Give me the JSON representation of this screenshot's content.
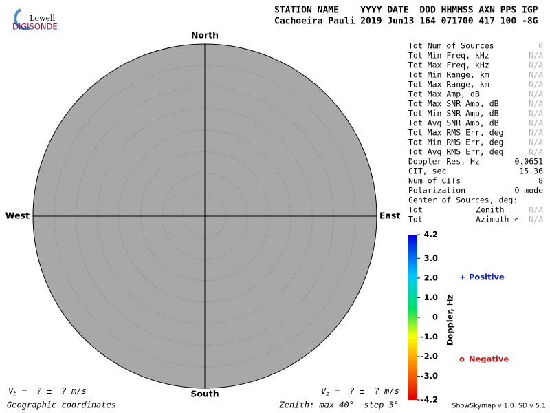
{
  "logo": {
    "top": "Lowell",
    "bottom": "DIGISONDE"
  },
  "header": {
    "line1": "STATION NAME    YYYY DATE  DDD HHMMSS AXN PPS IGP",
    "line2": "Cachoeira Pauli 2019 Jun13 164 071700 417 100 -8G"
  },
  "skymap": {
    "north": "North",
    "south": "South",
    "east": "East",
    "west": "West",
    "zenith_max": 40,
    "zenith_step": 5,
    "background": "#a8a8a8"
  },
  "stats": {
    "muted_color": "#b0b0b0",
    "rows": [
      {
        "label": "Tot Num of Sources",
        "value": "0",
        "muted": true
      },
      {
        "label": "Tot Min Freq, kHz",
        "value": "N/A",
        "muted": true
      },
      {
        "label": "Tot Max Freq, kHz",
        "value": "N/A",
        "muted": true
      },
      {
        "label": "Tot Min Range, km",
        "value": "N/A",
        "muted": true
      },
      {
        "label": "Tot Max Range, km",
        "value": "N/A",
        "muted": true
      },
      {
        "label": "Tot Max Amp, dB",
        "value": "N/A",
        "muted": true
      },
      {
        "label": "Tot Max SNR Amp, dB",
        "value": "N/A",
        "muted": true
      },
      {
        "label": "Tot Min SNR Amp, dB",
        "value": "N/A",
        "muted": true
      },
      {
        "label": "Tot Avg SNR Amp, dB",
        "value": "N/A",
        "muted": true
      },
      {
        "label": "Tot Max RMS Err, deg",
        "value": "N/A",
        "muted": true
      },
      {
        "label": "Tot Min RMS Err, deg",
        "value": "N/A",
        "muted": true
      },
      {
        "label": "Tot Avg RMS Err, deg",
        "value": "N/A",
        "muted": true
      },
      {
        "label": "Doppler Res, Hz",
        "value": "0.0651"
      },
      {
        "label": "CIT, sec",
        "value": "15.36"
      },
      {
        "label": "Num of CITs",
        "value": "8"
      },
      {
        "label": "Polarization",
        "value": "O-mode"
      },
      {
        "label": "Center of Sources, deg:"
      },
      {
        "label": "Tot",
        "mid": "Zenith",
        "value": "N/A",
        "muted": true
      },
      {
        "label": "Tot",
        "mid": "Azimuth ↶",
        "value": "N/A",
        "muted": true
      }
    ]
  },
  "colorbar": {
    "title": "Doppler, Hz",
    "lim": [
      -4.2,
      4.2
    ],
    "ticks": [
      4.2,
      {
        "value": 3,
        "label": "3.0"
      },
      {
        "value": 2,
        "label": "2.0"
      },
      {
        "value": 1,
        "label": "1.0"
      },
      0,
      {
        "value": -1,
        "label": "-1.0"
      },
      {
        "value": -2,
        "label": "-2.0"
      },
      {
        "value": -3,
        "label": "-3.0"
      },
      -4.2
    ]
  },
  "legend": {
    "positive": {
      "symbol": "+",
      "text": "Positive",
      "color": "#1020b0"
    },
    "negative": {
      "symbol": "o",
      "text": "Negative",
      "color": "#d01010"
    }
  },
  "footer": {
    "vh": {
      "v": "V",
      "sub": "h",
      "rest": " =  ? ±  ? m/s"
    },
    "vz": {
      "v": "V",
      "sub": "z",
      "rest": " =  ? ±  ? m/s"
    },
    "coords": "Geographic coordinates",
    "zenith": "Zenith: max 40°  step 5°",
    "version": "ShowSkymap v 1.0  SD v 5.1"
  }
}
